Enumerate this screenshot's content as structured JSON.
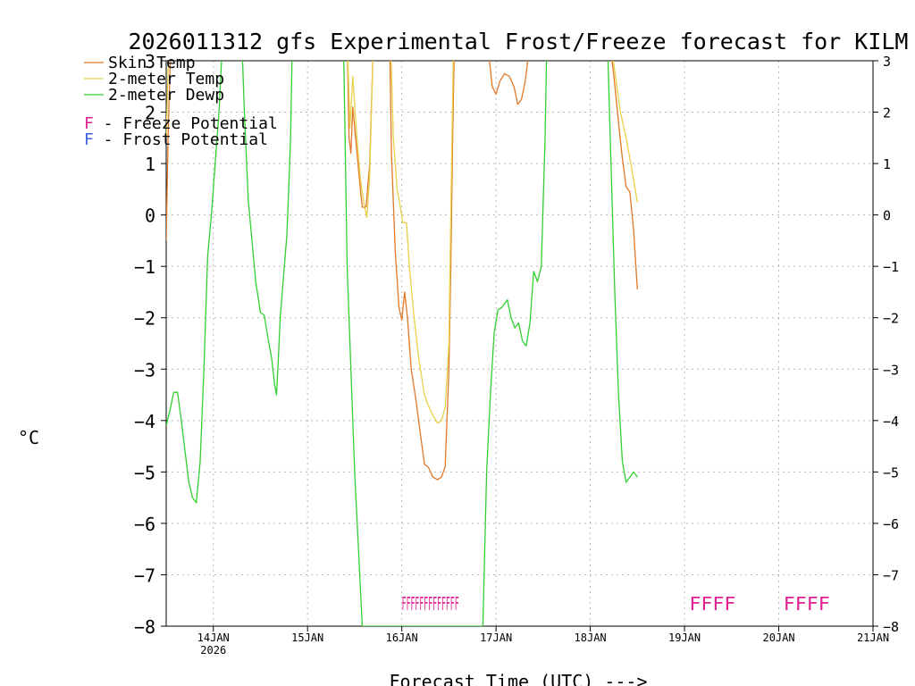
{
  "chart_data": {
    "type": "line",
    "title": "2026011312 gfs Experimental Frost/Freeze forecast for KILM",
    "ylabel": "°C",
    "xlabel": "Forecast Time (UTC) --->",
    "ylim": [
      -8,
      3
    ],
    "yticks": [
      -8,
      -7,
      -6,
      -5,
      -4,
      -3,
      -2,
      -1,
      0,
      1,
      2,
      3
    ],
    "xlim": [
      "2026-01-13 12:00",
      "2026-01-21 00:00"
    ],
    "xticks": [
      {
        "label": "14JAN",
        "sublabel": "2026",
        "day": 14
      },
      {
        "label": "15JAN",
        "sublabel": "",
        "day": 15
      },
      {
        "label": "16JAN",
        "sublabel": "",
        "day": 16
      },
      {
        "label": "17JAN",
        "sublabel": "",
        "day": 17
      },
      {
        "label": "18JAN",
        "sublabel": "",
        "day": 18
      },
      {
        "label": "19JAN",
        "sublabel": "",
        "day": 19
      },
      {
        "label": "20JAN",
        "sublabel": "",
        "day": 20
      },
      {
        "label": "21JAN",
        "sublabel": "",
        "day": 21
      }
    ],
    "grid": true,
    "legend_position": "top-left",
    "series": [
      {
        "name": "Skin Temp",
        "color": "#e07828",
        "points": [
          [
            13.5,
            -0.5
          ],
          [
            13.52,
            1.5
          ],
          [
            13.55,
            3.5
          ],
          [
            15.42,
            3.5
          ],
          [
            15.44,
            1.5
          ],
          [
            15.46,
            1.2
          ],
          [
            15.48,
            2.1
          ],
          [
            15.52,
            1.3
          ],
          [
            15.56,
            0.5
          ],
          [
            15.58,
            0.15
          ],
          [
            15.62,
            0.15
          ],
          [
            15.66,
            1.0
          ],
          [
            15.7,
            3.5
          ],
          [
            15.87,
            3.5
          ],
          [
            15.89,
            1.2
          ],
          [
            15.93,
            -0.7
          ],
          [
            15.97,
            -1.8
          ],
          [
            16.0,
            -2.05
          ],
          [
            16.03,
            -1.5
          ],
          [
            16.06,
            -2.0
          ],
          [
            16.1,
            -3.0
          ],
          [
            16.15,
            -3.6
          ],
          [
            16.2,
            -4.3
          ],
          [
            16.24,
            -4.85
          ],
          [
            16.28,
            -4.9
          ],
          [
            16.33,
            -5.1
          ],
          [
            16.38,
            -5.15
          ],
          [
            16.42,
            -5.1
          ],
          [
            16.46,
            -4.9
          ],
          [
            16.5,
            -3.0
          ],
          [
            16.52,
            -1.0
          ],
          [
            16.54,
            1.5
          ],
          [
            16.56,
            3.5
          ],
          [
            16.9,
            3.5
          ],
          [
            16.96,
            2.5
          ],
          [
            17.0,
            2.35
          ],
          [
            17.04,
            2.6
          ],
          [
            17.09,
            2.75
          ],
          [
            17.14,
            2.7
          ],
          [
            17.19,
            2.5
          ],
          [
            17.23,
            2.15
          ],
          [
            17.27,
            2.25
          ],
          [
            17.31,
            2.6
          ],
          [
            17.35,
            3.2
          ],
          [
            17.37,
            3.5
          ],
          [
            18.2,
            3.5
          ],
          [
            18.25,
            2.7
          ],
          [
            18.3,
            1.8
          ],
          [
            18.34,
            1.1
          ],
          [
            18.38,
            0.55
          ],
          [
            18.42,
            0.45
          ],
          [
            18.46,
            -0.3
          ],
          [
            18.5,
            -1.45
          ]
        ]
      },
      {
        "name": "2-meter Temp",
        "color": "#e8d048",
        "points": [
          [
            13.5,
            1.5
          ],
          [
            13.53,
            3.5
          ],
          [
            15.42,
            3.5
          ],
          [
            15.45,
            1.7
          ],
          [
            15.48,
            2.7
          ],
          [
            15.52,
            1.6
          ],
          [
            15.56,
            0.7
          ],
          [
            15.6,
            0.2
          ],
          [
            15.63,
            -0.05
          ],
          [
            15.66,
            0.8
          ],
          [
            15.7,
            3.5
          ],
          [
            15.88,
            3.5
          ],
          [
            15.91,
            1.5
          ],
          [
            15.95,
            0.5
          ],
          [
            15.98,
            0.2
          ],
          [
            16.01,
            -0.15
          ],
          [
            16.05,
            -0.15
          ],
          [
            16.08,
            -1.0
          ],
          [
            16.13,
            -2.0
          ],
          [
            16.18,
            -2.8
          ],
          [
            16.24,
            -3.5
          ],
          [
            16.28,
            -3.7
          ],
          [
            16.33,
            -3.9
          ],
          [
            16.38,
            -4.05
          ],
          [
            16.42,
            -4.0
          ],
          [
            16.46,
            -3.75
          ],
          [
            16.5,
            -2.5
          ],
          [
            16.52,
            0.0
          ],
          [
            16.55,
            3.5
          ],
          [
            18.2,
            3.5
          ],
          [
            18.26,
            2.8
          ],
          [
            18.32,
            2.0
          ],
          [
            18.38,
            1.5
          ],
          [
            18.44,
            0.9
          ],
          [
            18.5,
            0.25
          ]
        ]
      },
      {
        "name": "2-meter Dewp",
        "color": "#30d030",
        "points": [
          [
            13.5,
            -4.1
          ],
          [
            13.54,
            -3.8
          ],
          [
            13.58,
            -3.45
          ],
          [
            13.62,
            -3.45
          ],
          [
            13.66,
            -4.0
          ],
          [
            13.7,
            -4.6
          ],
          [
            13.74,
            -5.2
          ],
          [
            13.78,
            -5.5
          ],
          [
            13.82,
            -5.6
          ],
          [
            13.86,
            -4.8
          ],
          [
            13.9,
            -3.0
          ],
          [
            13.94,
            -0.8
          ],
          [
            13.98,
            0.0
          ],
          [
            14.02,
            1.0
          ],
          [
            14.06,
            2.0
          ],
          [
            14.1,
            3.5
          ],
          [
            14.3,
            3.5
          ],
          [
            14.33,
            2.0
          ],
          [
            14.37,
            0.3
          ],
          [
            14.41,
            -0.5
          ],
          [
            14.45,
            -1.3
          ],
          [
            14.5,
            -1.9
          ],
          [
            14.54,
            -1.95
          ],
          [
            14.58,
            -2.4
          ],
          [
            14.62,
            -2.8
          ],
          [
            14.65,
            -3.3
          ],
          [
            14.67,
            -3.5
          ],
          [
            14.69,
            -2.8
          ],
          [
            14.71,
            -2.0
          ],
          [
            14.74,
            -1.3
          ],
          [
            14.78,
            -0.4
          ],
          [
            14.8,
            0.5
          ],
          [
            14.82,
            1.5
          ],
          [
            14.84,
            3.5
          ],
          [
            15.38,
            3.5
          ],
          [
            15.42,
            -1.0
          ],
          [
            15.46,
            -3.0
          ],
          [
            15.5,
            -5.0
          ],
          [
            15.54,
            -6.5
          ],
          [
            15.58,
            -8.0
          ],
          [
            16.86,
            -8.0
          ],
          [
            16.9,
            -5.0
          ],
          [
            16.94,
            -3.5
          ],
          [
            16.98,
            -2.3
          ],
          [
            17.02,
            -1.85
          ],
          [
            17.06,
            -1.8
          ],
          [
            17.12,
            -1.65
          ],
          [
            17.16,
            -2.0
          ],
          [
            17.2,
            -2.2
          ],
          [
            17.24,
            -2.1
          ],
          [
            17.28,
            -2.45
          ],
          [
            17.32,
            -2.55
          ],
          [
            17.36,
            -2.1
          ],
          [
            17.4,
            -1.1
          ],
          [
            17.44,
            -1.3
          ],
          [
            17.48,
            -1.0
          ],
          [
            17.52,
            1.5
          ],
          [
            17.54,
            3.5
          ],
          [
            18.18,
            3.5
          ],
          [
            18.22,
            1.0
          ],
          [
            18.26,
            -1.5
          ],
          [
            18.3,
            -3.5
          ],
          [
            18.34,
            -4.8
          ],
          [
            18.38,
            -5.2
          ],
          [
            18.42,
            -5.1
          ],
          [
            18.46,
            -5.0
          ],
          [
            18.5,
            -5.1
          ]
        ]
      }
    ],
    "potential_markers": [
      {
        "text": "FFFFFFFFFFFFF",
        "x": 16.0,
        "y": -7.55,
        "color": "#e02090",
        "kind": "Freeze"
      },
      {
        "text": "FFFF",
        "x": 19.05,
        "y": -7.55,
        "color": "#e02090",
        "kind": "Freeze"
      },
      {
        "text": "FFFF",
        "x": 20.05,
        "y": -7.55,
        "color": "#e02090",
        "kind": "Freeze"
      }
    ],
    "legend": [
      {
        "label": "Skin Temp",
        "color": "#e07828"
      },
      {
        "label": "2-meter Temp",
        "color": "#e8d048"
      },
      {
        "label": "2-meter Dewp",
        "color": "#30d030"
      }
    ],
    "legend_notes": [
      {
        "letter": "F",
        "text": " - Freeze Potential",
        "color": "#e02090"
      },
      {
        "letter": "F",
        "text": " - Frost Potential",
        "color": "#4060e0"
      }
    ]
  }
}
